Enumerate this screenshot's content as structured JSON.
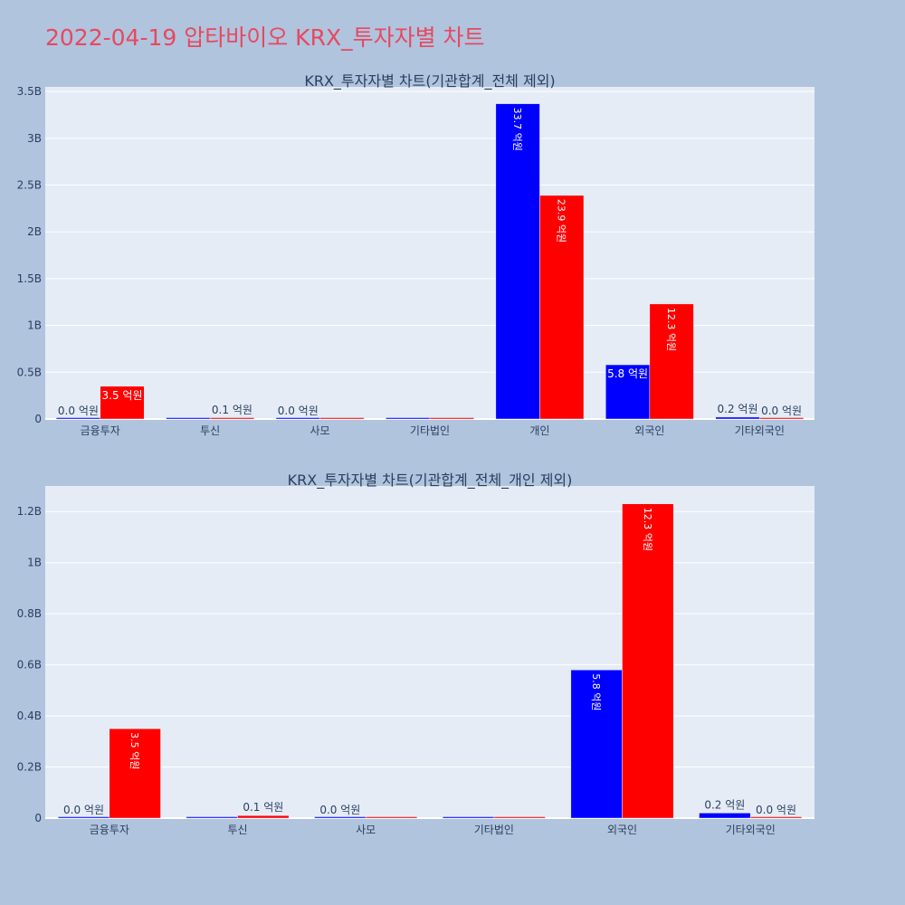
{
  "page": {
    "title": "2022-04-19 압타바이오 KRX_투자자별 차트"
  },
  "colors": {
    "buy": "#0000ff",
    "sell": "#ff0000",
    "plot_bg": "#e5ecf6",
    "grid": "#ffffff",
    "text": "#2a3f5f",
    "title": "#e8485f"
  },
  "chart_data": [
    {
      "type": "bar",
      "title": "KRX_투자자별 차트(기관합계_전체 제외)",
      "categories": [
        "금융투자",
        "투신",
        "사모",
        "기타법인",
        "개인",
        "외국인",
        "기타외국인"
      ],
      "series": [
        {
          "values": [
            0.0,
            0.0,
            0.0,
            0.0,
            3.37,
            0.58,
            0.02
          ],
          "labels": [
            "0.0 억원",
            "",
            "0.0 억원",
            "",
            "33.7 억원",
            "5.8 억원",
            "0.2 억원"
          ]
        },
        {
          "values": [
            0.35,
            0.01,
            0.0,
            0.0,
            2.39,
            1.23,
            0.0
          ],
          "labels": [
            "3.5 억원",
            "0.1 억원",
            "",
            "",
            "23.9 억원",
            "12.3 억원",
            "0.0 억원"
          ]
        }
      ],
      "ylim": [
        0,
        3.55
      ],
      "yticks": [
        0,
        0.5,
        1,
        1.5,
        2,
        2.5,
        3,
        3.5
      ],
      "yticklabels": [
        "0",
        "0.5B",
        "1B",
        "1.5B",
        "2B",
        "2.5B",
        "3B",
        "3.5B"
      ]
    },
    {
      "type": "bar",
      "title": "KRX_투자자별 차트(기관합계_전체_개인 제외)",
      "categories": [
        "금융투자",
        "투신",
        "사모",
        "기타법인",
        "외국인",
        "기타외국인"
      ],
      "series": [
        {
          "values": [
            0.0,
            0.0,
            0.0,
            0.0,
            0.58,
            0.02
          ],
          "labels": [
            "0.0 억원",
            "",
            "0.0 억원",
            "",
            "5.8 억원",
            "0.2 억원"
          ]
        },
        {
          "values": [
            0.35,
            0.01,
            0.0,
            0.0,
            1.23,
            0.0
          ],
          "labels": [
            "3.5 억원",
            "0.1 억원",
            "",
            "",
            "12.3 억원",
            "0.0 억원"
          ]
        }
      ],
      "ylim": [
        0,
        1.3
      ],
      "yticks": [
        0,
        0.2,
        0.4,
        0.6,
        0.8,
        1,
        1.2
      ],
      "yticklabels": [
        "0",
        "0.2B",
        "0.4B",
        "0.6B",
        "0.8B",
        "1B",
        "1.2B"
      ]
    }
  ]
}
